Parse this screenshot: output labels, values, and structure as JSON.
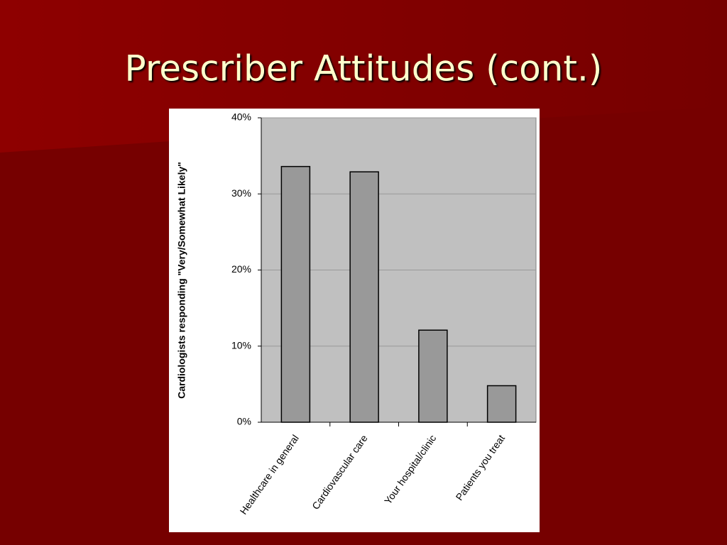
{
  "chart_data": {
    "type": "bar",
    "title": "Prescriber Attitudes (cont.)",
    "y_label": "Cardiologists responding \"Very/Somewhat Likely\"",
    "categories": [
      "Healthcare in general",
      "Cardiovascular care",
      "Your hospital/clinic",
      "Patients you treat"
    ],
    "values": [
      33.6,
      32.9,
      12.1,
      4.8
    ],
    "color": "#999999",
    "ylim": [
      0,
      40
    ],
    "yticks": [
      {
        "value": 0,
        "label": "0%"
      },
      {
        "value": 10,
        "label": "10%"
      },
      {
        "value": 20,
        "label": "20%"
      },
      {
        "value": 30,
        "label": "30%"
      },
      {
        "value": 40,
        "label": "40%"
      }
    ],
    "grid": true
  }
}
